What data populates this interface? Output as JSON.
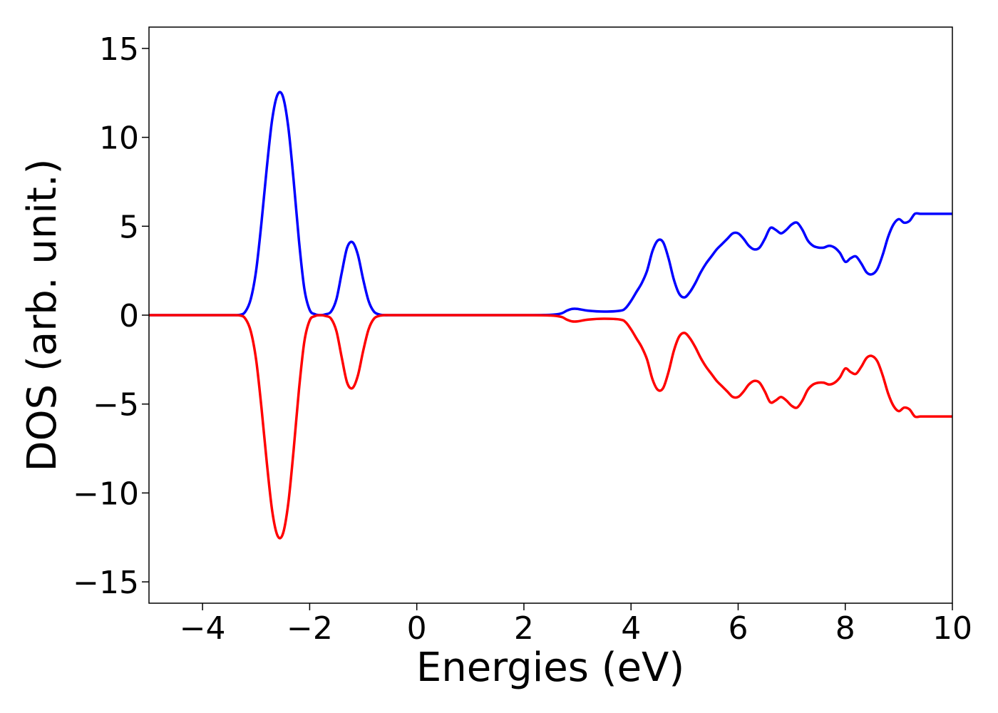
{
  "chart_data": {
    "type": "line",
    "title": "",
    "xlabel": "Energies (eV)",
    "ylabel": "DOS (arb. unit.)",
    "xlim": [
      -5,
      10
    ],
    "ylim": [
      -16.2,
      16.2
    ],
    "grid": false,
    "legend": "none",
    "xticks": [
      -4,
      -2,
      0,
      2,
      4,
      6,
      8,
      10
    ],
    "xtick_labels": [
      "−4",
      "−2",
      "0",
      "2",
      "4",
      "6",
      "8",
      "10"
    ],
    "yticks": [
      15,
      10,
      5,
      0,
      -5,
      -10,
      -15
    ],
    "ytick_labels": [
      "15",
      "10",
      "5",
      "0",
      "−5",
      "−10",
      "−15"
    ],
    "series": [
      {
        "color": "#0000ff",
        "x": [
          -5,
          -4,
          -3.5,
          -3.3,
          -3.2,
          -3.1,
          -3.0,
          -2.9,
          -2.8,
          -2.7,
          -2.6,
          -2.5,
          -2.4,
          -2.3,
          -2.2,
          -2.1,
          -2.0,
          -1.9,
          -1.8,
          -1.7,
          -1.6,
          -1.5,
          -1.4,
          -1.3,
          -1.2,
          -1.1,
          -1.0,
          -0.9,
          -0.8,
          -0.7,
          -0.6,
          -0.5,
          0,
          1,
          2,
          2.5,
          2.7,
          2.8,
          2.9,
          3.0,
          3.2,
          3.5,
          3.8,
          3.9,
          4.0,
          4.1,
          4.2,
          4.3,
          4.4,
          4.5,
          4.6,
          4.7,
          4.8,
          4.9,
          5.0,
          5.1,
          5.2,
          5.3,
          5.4,
          5.5,
          5.6,
          5.7,
          5.8,
          5.9,
          6.0,
          6.1,
          6.2,
          6.3,
          6.4,
          6.5,
          6.6,
          6.7,
          6.8,
          6.9,
          7.0,
          7.1,
          7.2,
          7.3,
          7.4,
          7.5,
          7.6,
          7.7,
          7.8,
          7.9,
          8.0,
          8.1,
          8.2,
          8.3,
          8.4,
          8.5,
          8.6,
          8.7,
          8.8,
          8.9,
          9.0,
          9.1,
          9.2,
          9.3,
          9.4,
          9.5,
          9.6,
          9.7,
          9.8,
          9.9,
          10.0
        ],
        "y": [
          0,
          0,
          0,
          0.02,
          0.2,
          0.9,
          2.5,
          5.2,
          8.3,
          11.0,
          12.4,
          12.3,
          10.6,
          7.6,
          4.2,
          1.5,
          0.3,
          0.05,
          0.0,
          0.05,
          0.2,
          0.9,
          2.4,
          3.8,
          4.1,
          3.4,
          2.0,
          0.8,
          0.2,
          0.04,
          0.0,
          0,
          0,
          0,
          0,
          0.02,
          0.1,
          0.25,
          0.35,
          0.35,
          0.25,
          0.2,
          0.25,
          0.4,
          0.8,
          1.3,
          1.8,
          2.5,
          3.6,
          4.2,
          4.1,
          3.2,
          2.0,
          1.2,
          1.0,
          1.3,
          1.8,
          2.4,
          2.9,
          3.3,
          3.7,
          4.0,
          4.3,
          4.6,
          4.6,
          4.3,
          3.9,
          3.7,
          3.8,
          4.3,
          4.9,
          4.8,
          4.6,
          4.8,
          5.1,
          5.2,
          4.8,
          4.2,
          3.9,
          3.8,
          3.8,
          3.9,
          3.8,
          3.5,
          3.0,
          3.2,
          3.3,
          2.9,
          2.4,
          2.3,
          2.6,
          3.4,
          4.4,
          5.1,
          5.4,
          5.2,
          5.3,
          5.7,
          5.7,
          5.7,
          5.7,
          5.7,
          5.7,
          5.7,
          5.7
        ]
      },
      {
        "color": "#ff0000",
        "x": [
          -5,
          -4,
          -3.5,
          -3.3,
          -3.2,
          -3.1,
          -3.0,
          -2.9,
          -2.8,
          -2.7,
          -2.6,
          -2.5,
          -2.4,
          -2.3,
          -2.2,
          -2.1,
          -2.0,
          -1.9,
          -1.8,
          -1.7,
          -1.6,
          -1.5,
          -1.4,
          -1.3,
          -1.2,
          -1.1,
          -1.0,
          -0.9,
          -0.8,
          -0.7,
          -0.6,
          -0.5,
          0,
          1,
          2,
          2.5,
          2.7,
          2.8,
          2.9,
          3.0,
          3.2,
          3.5,
          3.8,
          3.9,
          4.0,
          4.1,
          4.2,
          4.3,
          4.4,
          4.5,
          4.6,
          4.7,
          4.8,
          4.9,
          5.0,
          5.1,
          5.2,
          5.3,
          5.4,
          5.5,
          5.6,
          5.7,
          5.8,
          5.9,
          6.0,
          6.1,
          6.2,
          6.3,
          6.4,
          6.5,
          6.6,
          6.7,
          6.8,
          6.9,
          7.0,
          7.1,
          7.2,
          7.3,
          7.4,
          7.5,
          7.6,
          7.7,
          7.8,
          7.9,
          8.0,
          8.1,
          8.2,
          8.3,
          8.4,
          8.5,
          8.6,
          8.7,
          8.8,
          8.9,
          9.0,
          9.1,
          9.2,
          9.3,
          9.4,
          9.5,
          9.6,
          9.7,
          9.8,
          9.9,
          10.0
        ],
        "y": [
          0,
          0,
          0,
          -0.02,
          -0.2,
          -0.9,
          -2.5,
          -5.2,
          -8.3,
          -11.0,
          -12.4,
          -12.3,
          -10.6,
          -7.6,
          -4.2,
          -1.5,
          -0.3,
          -0.05,
          -0.0,
          -0.05,
          -0.2,
          -0.9,
          -2.4,
          -3.8,
          -4.1,
          -3.4,
          -2.0,
          -0.8,
          -0.2,
          -0.04,
          -0.0,
          0,
          0,
          0,
          0,
          -0.02,
          -0.1,
          -0.25,
          -0.35,
          -0.35,
          -0.25,
          -0.2,
          -0.25,
          -0.4,
          -0.8,
          -1.3,
          -1.8,
          -2.5,
          -3.6,
          -4.2,
          -4.1,
          -3.2,
          -2.0,
          -1.2,
          -1.0,
          -1.3,
          -1.8,
          -2.4,
          -2.9,
          -3.3,
          -3.7,
          -4.0,
          -4.3,
          -4.6,
          -4.6,
          -4.3,
          -3.9,
          -3.7,
          -3.8,
          -4.3,
          -4.9,
          -4.8,
          -4.6,
          -4.8,
          -5.1,
          -5.2,
          -4.8,
          -4.2,
          -3.9,
          -3.8,
          -3.8,
          -3.9,
          -3.8,
          -3.5,
          -3.0,
          -3.2,
          -3.3,
          -2.9,
          -2.4,
          -2.3,
          -2.6,
          -3.4,
          -4.4,
          -5.1,
          -5.4,
          -5.2,
          -5.3,
          -5.7,
          -5.7,
          -5.7,
          -5.7,
          -5.7,
          -5.7,
          -5.7,
          -5.7
        ]
      }
    ]
  }
}
